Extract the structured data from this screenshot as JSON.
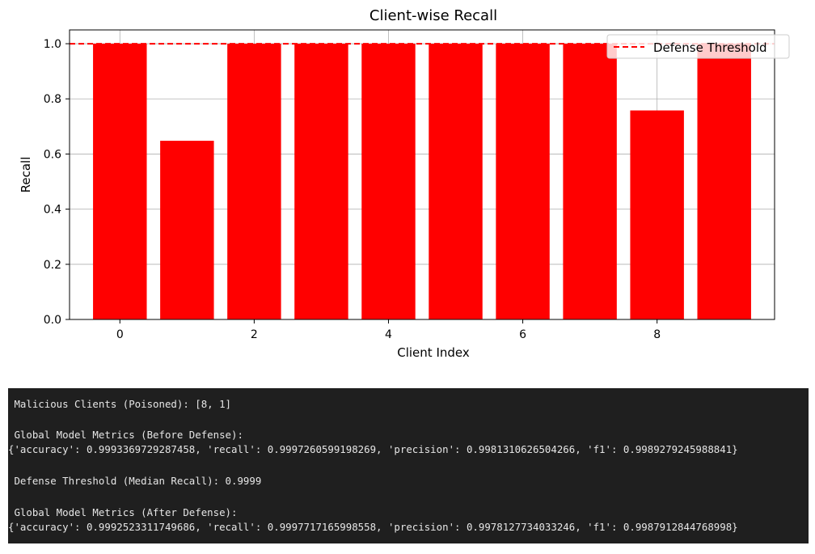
{
  "chart_data": {
    "type": "bar",
    "title": "Client-wise Recall",
    "xlabel": "Client Index",
    "ylabel": "Recall",
    "categories": [
      0,
      1,
      2,
      3,
      4,
      5,
      6,
      7,
      8,
      9
    ],
    "values": [
      1.0,
      0.648,
      1.0,
      1.0,
      1.0,
      1.0,
      1.0,
      1.0,
      0.758,
      1.0
    ],
    "bar_color": "#ff0000",
    "xlim": [
      -0.75,
      9.75
    ],
    "ylim": [
      0.0,
      1.05
    ],
    "xticks": [
      0,
      2,
      4,
      6,
      8
    ],
    "yticks": [
      0.0,
      0.2,
      0.4,
      0.6,
      0.8,
      1.0
    ],
    "ytick_labels": [
      "0.0",
      "0.2",
      "0.4",
      "0.6",
      "0.8",
      "1.0"
    ],
    "grid": true,
    "threshold": {
      "value": 0.9999,
      "label": "Defense Threshold",
      "color": "#ff0000",
      "style": "dashed"
    },
    "legend_position": "top-right"
  },
  "console": {
    "lines": [
      " Malicious Clients (Poisoned): [8, 1]",
      " Global Model Metrics (Before Defense):",
      "{'accuracy': 0.9993369729287458, 'recall': 0.9997260599198269, 'precision': 0.9981310626504266, 'f1': 0.9989279245988841}",
      " Defense Threshold (Median Recall): 0.9999",
      " Global Model Metrics (After Defense):",
      "{'accuracy': 0.9992523311749686, 'recall': 0.9997717165998558, 'precision': 0.9978127734033246, 'f1': 0.9987912844768998}"
    ]
  }
}
